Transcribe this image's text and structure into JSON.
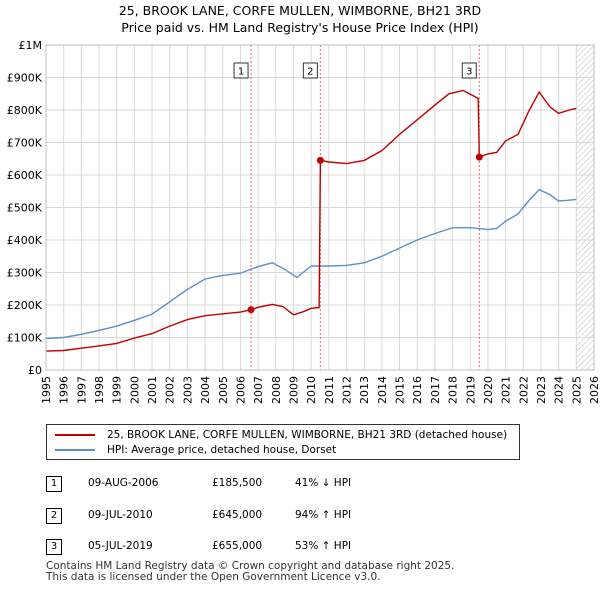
{
  "title_line1": "25, BROOK LANE, CORFE MULLEN, WIMBORNE, BH21 3RD",
  "title_line2": "Price paid vs. HM Land Registry's House Price Index (HPI)",
  "chart_data": {
    "type": "line",
    "xlim": [
      1995,
      2026
    ],
    "ylim": [
      0,
      1000000
    ],
    "y_ticks": [
      {
        "v": 0,
        "label": "£0"
      },
      {
        "v": 100000,
        "label": "£100K"
      },
      {
        "v": 200000,
        "label": "£200K"
      },
      {
        "v": 300000,
        "label": "£300K"
      },
      {
        "v": 400000,
        "label": "£400K"
      },
      {
        "v": 500000,
        "label": "£500K"
      },
      {
        "v": 600000,
        "label": "£600K"
      },
      {
        "v": 700000,
        "label": "£700K"
      },
      {
        "v": 800000,
        "label": "£800K"
      },
      {
        "v": 900000,
        "label": "£900K"
      },
      {
        "v": 1000000,
        "label": "£1M"
      }
    ],
    "x_ticks": [
      "1995",
      "1996",
      "1997",
      "1998",
      "1999",
      "2000",
      "2001",
      "2002",
      "2003",
      "2004",
      "2005",
      "2006",
      "2007",
      "2008",
      "2009",
      "2010",
      "2011",
      "2012",
      "2013",
      "2014",
      "2015",
      "2016",
      "2017",
      "2018",
      "2019",
      "2020",
      "2021",
      "2022",
      "2023",
      "2024",
      "2025",
      "2026"
    ],
    "forecast_start": 2025.0,
    "series": [
      {
        "name": "25, BROOK LANE, CORFE MULLEN, WIMBORNE, BH21 3RD (detached house)",
        "color": "#c00000",
        "points": [
          [
            1995.0,
            58000
          ],
          [
            1996.0,
            60000
          ],
          [
            1997.0,
            67000
          ],
          [
            1998.0,
            74000
          ],
          [
            1999.0,
            82000
          ],
          [
            2000.0,
            98000
          ],
          [
            2001.0,
            112000
          ],
          [
            2002.0,
            135000
          ],
          [
            2003.0,
            155000
          ],
          [
            2004.0,
            167000
          ],
          [
            2005.0,
            173000
          ],
          [
            2006.0,
            178000
          ],
          [
            2006.6,
            185500
          ],
          [
            2007.0,
            193000
          ],
          [
            2007.8,
            202000
          ],
          [
            2008.4,
            195000
          ],
          [
            2009.0,
            170000
          ],
          [
            2009.5,
            178000
          ],
          [
            2010.0,
            190000
          ],
          [
            2010.45,
            192000
          ],
          [
            2010.52,
            645000
          ],
          [
            2011.0,
            640000
          ],
          [
            2012.0,
            635000
          ],
          [
            2013.0,
            645000
          ],
          [
            2014.0,
            675000
          ],
          [
            2015.0,
            725000
          ],
          [
            2016.0,
            770000
          ],
          [
            2017.0,
            815000
          ],
          [
            2017.8,
            850000
          ],
          [
            2018.6,
            860000
          ],
          [
            2019.3,
            840000
          ],
          [
            2019.45,
            835000
          ],
          [
            2019.51,
            655000
          ],
          [
            2020.0,
            665000
          ],
          [
            2020.5,
            670000
          ],
          [
            2021.0,
            705000
          ],
          [
            2021.7,
            725000
          ],
          [
            2022.3,
            795000
          ],
          [
            2022.9,
            855000
          ],
          [
            2023.5,
            810000
          ],
          [
            2024.0,
            790000
          ],
          [
            2024.6,
            800000
          ],
          [
            2025.0,
            805000
          ]
        ]
      },
      {
        "name": "HPI: Average price, detached house, Dorset",
        "color": "#5b8fc9",
        "points": [
          [
            1995.0,
            97000
          ],
          [
            1996.0,
            100000
          ],
          [
            1997.0,
            110000
          ],
          [
            1998.0,
            122000
          ],
          [
            1999.0,
            135000
          ],
          [
            2000.0,
            153000
          ],
          [
            2001.0,
            172000
          ],
          [
            2002.0,
            210000
          ],
          [
            2003.0,
            248000
          ],
          [
            2004.0,
            280000
          ],
          [
            2005.0,
            291000
          ],
          [
            2006.0,
            298000
          ],
          [
            2007.0,
            318000
          ],
          [
            2007.8,
            330000
          ],
          [
            2008.5,
            310000
          ],
          [
            2009.2,
            285000
          ],
          [
            2010.0,
            320000
          ],
          [
            2011.0,
            320000
          ],
          [
            2012.0,
            322000
          ],
          [
            2013.0,
            330000
          ],
          [
            2014.0,
            350000
          ],
          [
            2015.0,
            375000
          ],
          [
            2016.0,
            400000
          ],
          [
            2017.0,
            420000
          ],
          [
            2018.0,
            438000
          ],
          [
            2019.0,
            438000
          ],
          [
            2020.0,
            432000
          ],
          [
            2020.5,
            436000
          ],
          [
            2021.0,
            458000
          ],
          [
            2021.7,
            480000
          ],
          [
            2022.3,
            520000
          ],
          [
            2022.9,
            555000
          ],
          [
            2023.5,
            540000
          ],
          [
            2024.0,
            520000
          ],
          [
            2024.5,
            522000
          ],
          [
            2025.0,
            525000
          ]
        ]
      }
    ],
    "sales": [
      {
        "n": "1",
        "x": 2006.6,
        "price": 185500
      },
      {
        "n": "2",
        "x": 2010.52,
        "price": 645000
      },
      {
        "n": "3",
        "x": 2019.51,
        "price": 655000
      }
    ]
  },
  "legend": {
    "property_label": "25, BROOK LANE, CORFE MULLEN, WIMBORNE, BH21 3RD (detached house)",
    "hpi_label": "HPI: Average price, detached house, Dorset",
    "property_color": "#c00000",
    "hpi_color": "#5b8fc9"
  },
  "transactions": [
    {
      "n": "1",
      "date": "09-AUG-2006",
      "price": "£185,500",
      "delta": "41% ↓ HPI"
    },
    {
      "n": "2",
      "date": "09-JUL-2010",
      "price": "£645,000",
      "delta": "94% ↑ HPI"
    },
    {
      "n": "3",
      "date": "05-JUL-2019",
      "price": "£655,000",
      "delta": "53% ↑ HPI"
    }
  ],
  "footer_line1": "Contains HM Land Registry data © Crown copyright and database right 2025.",
  "footer_line2": "This data is licensed under the Open Government Licence v3.0."
}
